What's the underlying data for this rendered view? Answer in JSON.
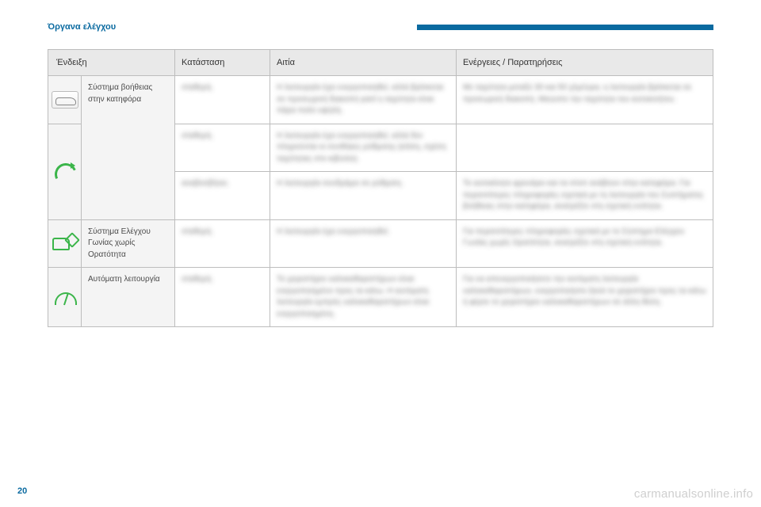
{
  "page": {
    "section_title": "Όργανα ελέγχου",
    "page_number": "20",
    "watermark": "carmanualsonline.info",
    "accent_color": "#0a6aa0",
    "icon_color": "#3bb54a"
  },
  "table": {
    "columns": [
      "Ένδειξη",
      "Κατάσταση",
      "Αιτία",
      "Ενέργειες / Παρατηρήσεις"
    ],
    "rows": [
      {
        "icon": "assist",
        "name": "Σύστημα βοήθειας στην κατηφόρα",
        "name_rowspan": 3,
        "state": "σταθερή.",
        "cause": "Η λειτουργία έχει ενεργοποιηθεί, αλλά βρίσκεται σε προσωρινή διακοπή γιατί η ταχύτητα είναι πάρα πολύ υψηλή.",
        "action": "Με ταχύτητα μεταξύ 30 και 50 χλμ/ώρα, η λειτουργία βρίσκεται σε προσωρινή διακοπή. Μειώστε την ταχύτητα του αυτοκινήτου."
      },
      {
        "icon": "curve",
        "icon_rowspan": 2,
        "state": "σταθερή.",
        "cause": "Η λειτουργία έχει ενεργοποιηθεί, αλλά δεν πληρούνται οι συνθήκες ρύθμισης (κλίση, σχέση ταχύτητας στο κιβώτιο).",
        "action": ""
      },
      {
        "state": "αναβοσβήνει.",
        "cause": "Η λειτουργία συνδράμει σε ρύθμιση.",
        "action": "Το αυτοκίνητο φρενάρει και τα στοπ ανάβουν στην κατηφόρα. Για περισσότερες πληροφορίες σχετικά με τη λειτουργία του Συστήματος βοήθειας στην κατηφόρα, ανατρέξτε στη σχετική ενότητα."
      },
      {
        "icon": "blind",
        "name": "Σύστημα Ελέγχου Γωνίας χωρίς Ορατότητα",
        "state": "σταθερή.",
        "cause": "Η λειτουργία έχει ενεργοποιηθεί.",
        "action": "Για περισσότερες πληροφορίες σχετικά με το Σύστημα Ελέγχου Γωνίας χωρίς Ορατότητα, ανατρέξτε στη σχετική ενότητα."
      },
      {
        "icon": "wiper",
        "name": "Αυτόματη λειτουργία",
        "state": "σταθερή.",
        "cause": "Το χειριστήριο υαλοκαθαριστήρων είναι ενεργοποιημένο προς τα κάτω. Η αυτόματη λειτουργία εμπρός υαλοκαθαριστήρων είναι ενεργοποιημένη.",
        "action": "Για να απενεργοποιήσετε την αυτόματη λειτουργία υαλοκαθαριστήρων, ενεργοποιήστε ξανά το χειριστήριο προς τα κάτω ή φέρτε το χειριστήριο υαλοκαθαριστήρων σε άλλη θέση."
      }
    ]
  }
}
